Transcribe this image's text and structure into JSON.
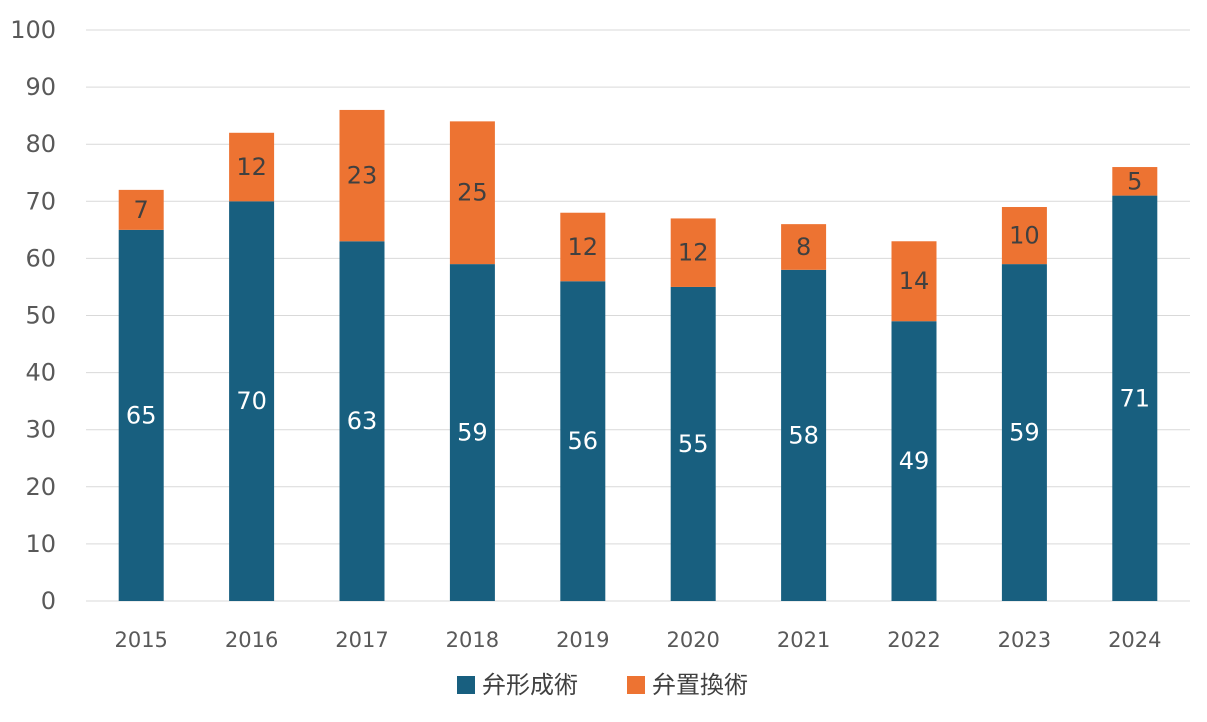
{
  "chart_data": {
    "type": "bar",
    "stacked": true,
    "categories": [
      "2015",
      "2016",
      "2017",
      "2018",
      "2019",
      "2020",
      "2021",
      "2022",
      "2023",
      "2024"
    ],
    "series": [
      {
        "name": "弁形成術",
        "color": "#185f7f",
        "values": [
          65,
          70,
          63,
          59,
          56,
          55,
          58,
          49,
          59,
          71
        ]
      },
      {
        "name": "弁置換術",
        "color": "#ed7332",
        "values": [
          7,
          12,
          23,
          25,
          12,
          12,
          8,
          14,
          10,
          5
        ]
      }
    ],
    "ylim": [
      0,
      100
    ],
    "yticks": [
      0,
      10,
      20,
      30,
      40,
      50,
      60,
      70,
      80,
      90,
      100
    ],
    "grid": true,
    "legend": "bottom",
    "data_labels": true
  }
}
